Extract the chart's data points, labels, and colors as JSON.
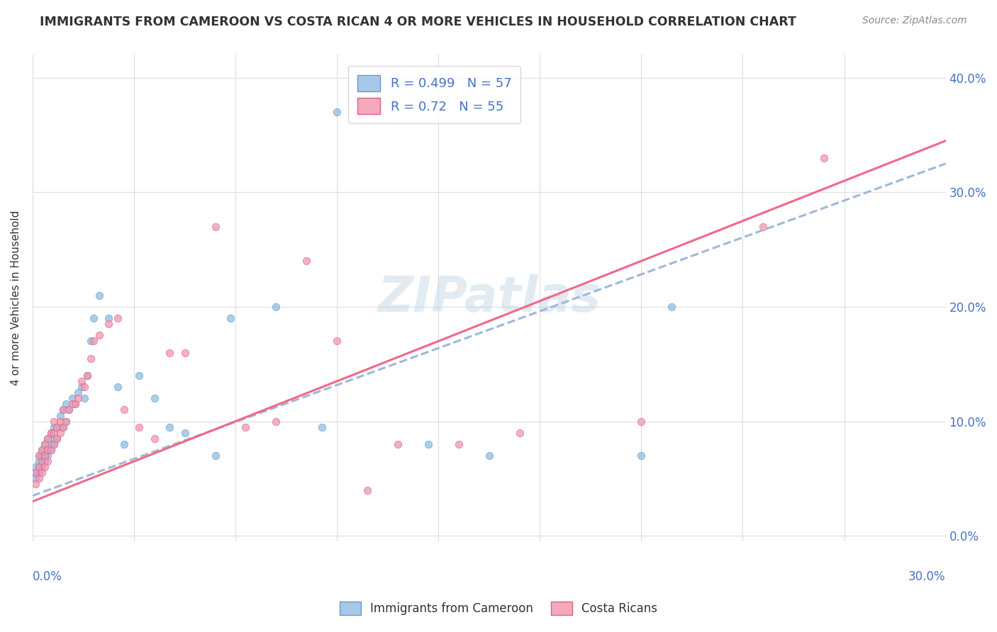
{
  "title": "IMMIGRANTS FROM CAMEROON VS COSTA RICAN 4 OR MORE VEHICLES IN HOUSEHOLD CORRELATION CHART",
  "source": "Source: ZipAtlas.com",
  "ylabel": "4 or more Vehicles in Household",
  "ytick_vals": [
    0.0,
    0.1,
    0.2,
    0.3,
    0.4
  ],
  "xlim": [
    0.0,
    0.3
  ],
  "ylim": [
    -0.005,
    0.42
  ],
  "watermark": "ZIPatlas",
  "series1_color": "#90bede",
  "series2_color": "#f097b0",
  "series1_edge": "#6699cc",
  "series2_edge": "#e06080",
  "trendline1_color": "#a0b8d8",
  "trendline2_color": "#f06888",
  "trendline1_style": "--",
  "trendline2_style": "-",
  "R1": 0.499,
  "N1": 57,
  "R2": 0.72,
  "N2": 55,
  "legend_patch1_face": "#a8c8e8",
  "legend_patch1_edge": "#6699cc",
  "legend_patch2_face": "#f4a8bc",
  "legend_patch2_edge": "#e06080",
  "text_blue": "#4472c4",
  "text_dark": "#333333",
  "text_gray": "#888888",
  "grid_color": "#dddddd",
  "cameroon_x": [
    0.001,
    0.001,
    0.001,
    0.002,
    0.002,
    0.002,
    0.002,
    0.003,
    0.003,
    0.003,
    0.003,
    0.004,
    0.004,
    0.004,
    0.005,
    0.005,
    0.005,
    0.006,
    0.006,
    0.006,
    0.007,
    0.007,
    0.007,
    0.008,
    0.008,
    0.009,
    0.009,
    0.01,
    0.01,
    0.011,
    0.011,
    0.012,
    0.013,
    0.014,
    0.015,
    0.016,
    0.017,
    0.018,
    0.019,
    0.02,
    0.022,
    0.025,
    0.028,
    0.03,
    0.035,
    0.04,
    0.045,
    0.05,
    0.06,
    0.065,
    0.08,
    0.095,
    0.1,
    0.13,
    0.15,
    0.2,
    0.21
  ],
  "cameroon_y": [
    0.05,
    0.055,
    0.06,
    0.055,
    0.06,
    0.065,
    0.07,
    0.06,
    0.065,
    0.07,
    0.075,
    0.065,
    0.07,
    0.08,
    0.07,
    0.075,
    0.085,
    0.075,
    0.08,
    0.09,
    0.08,
    0.085,
    0.095,
    0.085,
    0.095,
    0.095,
    0.105,
    0.095,
    0.11,
    0.1,
    0.115,
    0.11,
    0.12,
    0.115,
    0.125,
    0.13,
    0.12,
    0.14,
    0.17,
    0.19,
    0.21,
    0.19,
    0.13,
    0.08,
    0.14,
    0.12,
    0.095,
    0.09,
    0.07,
    0.19,
    0.2,
    0.095,
    0.37,
    0.08,
    0.07,
    0.07,
    0.2
  ],
  "costarica_x": [
    0.001,
    0.001,
    0.002,
    0.002,
    0.002,
    0.003,
    0.003,
    0.003,
    0.004,
    0.004,
    0.004,
    0.005,
    0.005,
    0.005,
    0.006,
    0.006,
    0.007,
    0.007,
    0.007,
    0.008,
    0.008,
    0.009,
    0.009,
    0.01,
    0.01,
    0.011,
    0.012,
    0.013,
    0.014,
    0.015,
    0.016,
    0.017,
    0.018,
    0.019,
    0.02,
    0.022,
    0.025,
    0.028,
    0.03,
    0.035,
    0.04,
    0.045,
    0.05,
    0.06,
    0.07,
    0.08,
    0.09,
    0.1,
    0.11,
    0.12,
    0.14,
    0.16,
    0.2,
    0.24,
    0.26
  ],
  "costarica_y": [
    0.045,
    0.055,
    0.05,
    0.06,
    0.07,
    0.055,
    0.065,
    0.075,
    0.06,
    0.07,
    0.08,
    0.065,
    0.075,
    0.085,
    0.075,
    0.09,
    0.08,
    0.09,
    0.1,
    0.085,
    0.095,
    0.09,
    0.1,
    0.095,
    0.11,
    0.1,
    0.11,
    0.115,
    0.115,
    0.12,
    0.135,
    0.13,
    0.14,
    0.155,
    0.17,
    0.175,
    0.185,
    0.19,
    0.11,
    0.095,
    0.085,
    0.16,
    0.16,
    0.27,
    0.095,
    0.1,
    0.24,
    0.17,
    0.04,
    0.08,
    0.08,
    0.09,
    0.1,
    0.27,
    0.33
  ],
  "trendline1_x0": 0.0,
  "trendline1_y0": 0.035,
  "trendline1_x1": 0.3,
  "trendline1_y1": 0.325,
  "trendline2_x0": 0.0,
  "trendline2_y0": 0.03,
  "trendline2_x1": 0.3,
  "trendline2_y1": 0.345
}
